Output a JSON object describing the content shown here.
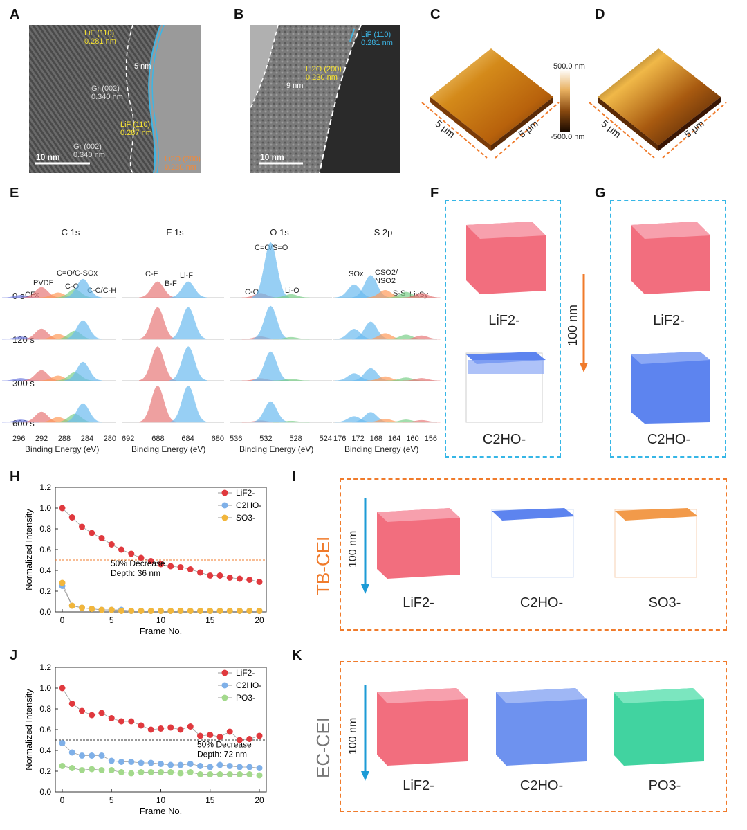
{
  "panels": {
    "A": "A",
    "B": "B",
    "C": "C",
    "D": "D",
    "E": "E",
    "F": "F",
    "G": "G",
    "H": "H",
    "I": "I",
    "J": "J",
    "K": "K"
  },
  "panelA": {
    "lif_label": "LiF (110)",
    "lif_d": "0.281 nm",
    "thick": "5 nm",
    "gr1_label": "Gr (002)",
    "gr1_d": "0.340 nm",
    "lif2_label": "LiF (110)",
    "lif2_d": "0.287 nm",
    "gr2_label": "Gr (002)",
    "gr2_d": "0.340 nm",
    "li2o_label": "Li2O (200)",
    "li2o_d": "0.230 nm",
    "scale": "10 nm"
  },
  "panelB": {
    "lif_label": "LiF (110)",
    "lif_d": "0.281 nm",
    "li2o_label": "Li2O (200)",
    "li2o_d": "0.230 nm",
    "thick": "9 nm",
    "scale": "10 nm"
  },
  "afm": {
    "scale_top": "500.0 nm",
    "scale_bottom": "-500.0 nm",
    "dim": "5 μm"
  },
  "xps": {
    "titles": [
      "C 1s",
      "F 1s",
      "O 1s",
      "S 2p"
    ],
    "times": [
      "0 s",
      "120 s",
      "300 s",
      "600 s"
    ],
    "xlabel": "Binding Energy (eV)",
    "c1s_ticks": [
      "296",
      "292",
      "288",
      "284",
      "280"
    ],
    "f1s_ticks": [
      "692",
      "688",
      "684",
      "680"
    ],
    "o1s_ticks": [
      "536",
      "532",
      "528",
      "524"
    ],
    "s2p_ticks": [
      "176",
      "172",
      "168",
      "164",
      "160",
      "156"
    ],
    "c_labels": {
      "cfx": "CFx",
      "pvdf": "PVDF",
      "co_cso": "C=O/C-SOx",
      "co": "C-O",
      "cc": "C-C/C-H"
    },
    "f_labels": {
      "cf": "C-F",
      "bf": "B-F",
      "lif": "Li-F"
    },
    "o_labels": {
      "top": "C=O/S=O",
      "co": "C-O",
      "lio": "Li-O"
    },
    "s_labels": {
      "sox": "SOx",
      "cso2": "CSO2/",
      "nso2": "NSO2",
      "ss": "S-S",
      "lis": "LixSy"
    }
  },
  "panelF": {
    "lif": "LiF2-",
    "c2ho": "C2HO-"
  },
  "panelG": {
    "lif": "LiF2-",
    "c2ho": "C2HO-"
  },
  "depth_label": "100 nm",
  "panelI": {
    "side": "TB-CEI",
    "depth": "100 nm",
    "cubes": [
      "LiF2-",
      "C2HO-",
      "SO3-"
    ]
  },
  "panelK": {
    "side": "EC-CEI",
    "depth": "100 nm",
    "cubes": [
      "LiF2-",
      "C2HO-",
      "PO3-"
    ]
  },
  "chart_data": [
    {
      "type": "line",
      "title": "",
      "xlabel": "Frame No.",
      "ylabel": "Normalized Intensity",
      "xlim": [
        0,
        20
      ],
      "ylim": [
        0,
        1.2
      ],
      "x": [
        0,
        1,
        2,
        3,
        4,
        5,
        6,
        7,
        8,
        9,
        10,
        11,
        12,
        13,
        14,
        15,
        16,
        17,
        18,
        19,
        20
      ],
      "series": [
        {
          "name": "LiF2-",
          "color": "#e0393e",
          "values": [
            1.0,
            0.91,
            0.82,
            0.76,
            0.71,
            0.65,
            0.6,
            0.56,
            0.52,
            0.49,
            0.46,
            0.44,
            0.43,
            0.41,
            0.38,
            0.35,
            0.35,
            0.33,
            0.32,
            0.31,
            0.29
          ]
        },
        {
          "name": "C2HO-",
          "color": "#7fb0e8",
          "values": [
            0.25,
            0.06,
            0.04,
            0.03,
            0.02,
            0.02,
            0.02,
            0.01,
            0.01,
            0.01,
            0.01,
            0.01,
            0.01,
            0.01,
            0.01,
            0.01,
            0.01,
            0.01,
            0.01,
            0.01,
            0.01
          ]
        },
        {
          "name": "SO3-",
          "color": "#f2b63b",
          "values": [
            0.28,
            0.06,
            0.04,
            0.03,
            0.02,
            0.02,
            0.01,
            0.01,
            0.01,
            0.01,
            0.01,
            0.01,
            0.01,
            0.01,
            0.01,
            0.01,
            0.01,
            0.01,
            0.01,
            0.01,
            0.01
          ]
        }
      ],
      "reference_y": 0.5,
      "annotation": [
        "50% Decrease",
        "Depth: 36 nm"
      ],
      "yticks": [
        "0.0",
        "0.2",
        "0.4",
        "0.6",
        "0.8",
        "1.0",
        "1.2"
      ],
      "xticks": [
        "0",
        "5",
        "10",
        "15",
        "20"
      ]
    },
    {
      "type": "line",
      "title": "",
      "xlabel": "Frame No.",
      "ylabel": "Normalized Intensity",
      "xlim": [
        0,
        20
      ],
      "ylim": [
        0,
        1.2
      ],
      "x": [
        0,
        1,
        2,
        3,
        4,
        5,
        6,
        7,
        8,
        9,
        10,
        11,
        12,
        13,
        14,
        15,
        16,
        17,
        18,
        19,
        20
      ],
      "series": [
        {
          "name": "LiF2-",
          "color": "#e0393e",
          "values": [
            1.0,
            0.85,
            0.78,
            0.74,
            0.76,
            0.71,
            0.68,
            0.68,
            0.64,
            0.6,
            0.61,
            0.62,
            0.6,
            0.63,
            0.54,
            0.55,
            0.53,
            0.58,
            0.5,
            0.51,
            0.54
          ]
        },
        {
          "name": "C2HO-",
          "color": "#7fb0e8",
          "values": [
            0.47,
            0.38,
            0.35,
            0.35,
            0.35,
            0.3,
            0.29,
            0.29,
            0.28,
            0.28,
            0.27,
            0.26,
            0.26,
            0.27,
            0.25,
            0.24,
            0.26,
            0.25,
            0.24,
            0.24,
            0.23
          ]
        },
        {
          "name": "PO3-",
          "color": "#a3d98c",
          "values": [
            0.25,
            0.23,
            0.21,
            0.22,
            0.21,
            0.21,
            0.19,
            0.18,
            0.19,
            0.19,
            0.19,
            0.19,
            0.18,
            0.19,
            0.17,
            0.17,
            0.17,
            0.17,
            0.17,
            0.17,
            0.16
          ]
        }
      ],
      "reference_y": 0.5,
      "annotation": [
        "50% Decrease",
        "Depth: 72 nm"
      ],
      "yticks": [
        "0.0",
        "0.2",
        "0.4",
        "0.6",
        "0.8",
        "1.0",
        "1.2"
      ],
      "xticks": [
        "0",
        "5",
        "10",
        "15",
        "20"
      ]
    }
  ]
}
